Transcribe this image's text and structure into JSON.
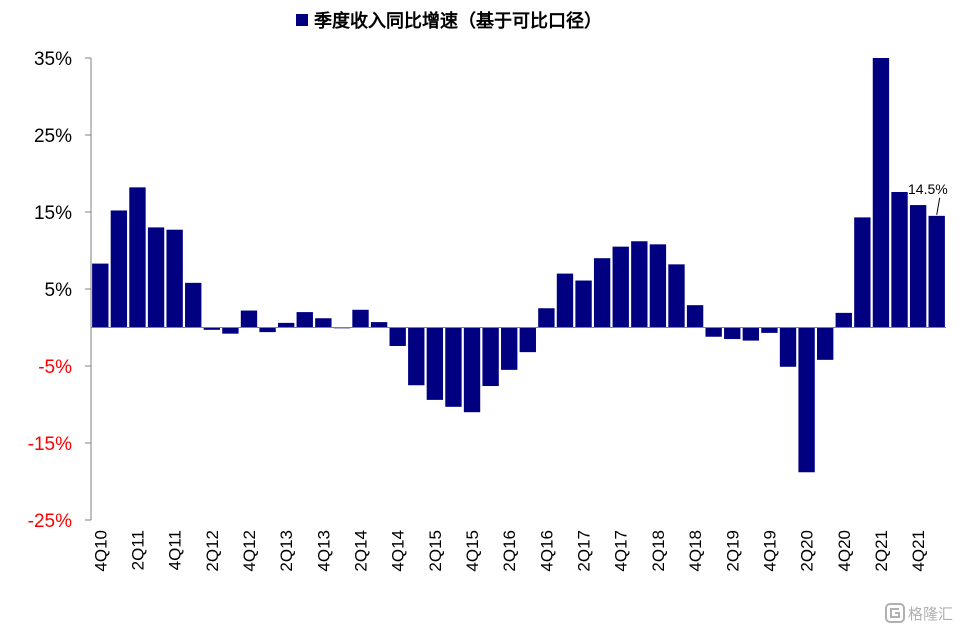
{
  "chart_data": {
    "type": "bar",
    "title": "",
    "legend": {
      "name": "季度收入同比增速（基于可比口径）",
      "position": "top-center",
      "color": "#000080"
    },
    "xlabel": "",
    "ylabel": "",
    "ylim": [
      -25,
      35
    ],
    "yticks": [
      "35%",
      "25%",
      "15%",
      "5%",
      "-5%",
      "-15%",
      "-25%"
    ],
    "ytick_values": [
      35,
      25,
      15,
      5,
      -5,
      -15,
      -25
    ],
    "negative_tick_color": "#ff0000",
    "bar_color": "#000080",
    "grid": false,
    "categories": [
      "4Q10",
      "1Q11",
      "2Q11",
      "3Q11",
      "4Q11",
      "1Q12",
      "2Q12",
      "3Q12",
      "4Q12",
      "1Q13",
      "2Q13",
      "3Q13",
      "4Q13",
      "1Q14",
      "2Q14",
      "3Q14",
      "4Q14",
      "1Q15",
      "2Q15",
      "3Q15",
      "4Q15",
      "1Q16",
      "2Q16",
      "3Q16",
      "4Q16",
      "1Q17",
      "2Q17",
      "3Q17",
      "4Q17",
      "1Q18",
      "2Q18",
      "3Q18",
      "4Q18",
      "1Q19",
      "2Q19",
      "3Q19",
      "4Q19",
      "1Q20",
      "2Q20",
      "3Q20",
      "4Q20",
      "1Q21",
      "2Q21",
      "3Q21",
      "4Q21",
      "1Q22"
    ],
    "shown_category_labels": [
      "4Q10",
      "2Q11",
      "4Q11",
      "2Q12",
      "4Q12",
      "2Q13",
      "4Q13",
      "2Q14",
      "4Q14",
      "2Q15",
      "4Q15",
      "2Q16",
      "4Q16",
      "2Q17",
      "4Q17",
      "2Q18",
      "4Q18",
      "2Q19",
      "4Q19",
      "2Q20",
      "4Q20",
      "2Q21",
      "4Q21"
    ],
    "values": [
      8.3,
      15.2,
      18.2,
      13.0,
      12.7,
      5.8,
      -0.3,
      -0.8,
      2.2,
      -0.6,
      0.6,
      2.0,
      1.2,
      -0.1,
      2.3,
      0.7,
      -2.4,
      -7.5,
      -9.4,
      -10.3,
      -11.0,
      -7.6,
      -5.5,
      -3.2,
      2.5,
      7.0,
      6.1,
      9.0,
      10.5,
      11.2,
      10.8,
      8.2,
      2.9,
      -1.2,
      -1.5,
      -1.7,
      -0.7,
      -5.1,
      -18.8,
      -4.2,
      1.9,
      14.3,
      35.0,
      17.6,
      15.9,
      14.5
    ],
    "annotations": [
      {
        "category": "1Q22",
        "text": "14.5%"
      }
    ]
  },
  "watermark": {
    "text": "格隆汇",
    "icon": "gelonghui-logo-icon"
  }
}
